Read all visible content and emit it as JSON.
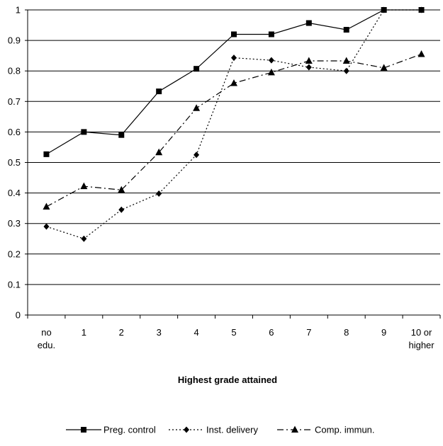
{
  "chart_data": {
    "type": "line",
    "xlabel": "Highest grade attained",
    "ylabel": "",
    "ylim": [
      0,
      1
    ],
    "yticks": [
      "0",
      "0.1",
      "0.2",
      "0.3",
      "0.4",
      "0.5",
      "0.6",
      "0.7",
      "0.8",
      "0.9",
      "1"
    ],
    "categories": [
      [
        "no",
        "edu."
      ],
      [
        "1"
      ],
      [
        "2"
      ],
      [
        "3"
      ],
      [
        "4"
      ],
      [
        "5"
      ],
      [
        "6"
      ],
      [
        "7"
      ],
      [
        "8"
      ],
      [
        "9"
      ],
      [
        "10 or",
        "higher"
      ]
    ],
    "grid": "horizontal",
    "legend_position": "bottom",
    "series": [
      {
        "name": "Preg. control",
        "marker": "square",
        "dash": "solid",
        "color": "#000000",
        "values": [
          0.527,
          0.6,
          0.59,
          0.733,
          0.807,
          0.92,
          0.92,
          0.957,
          0.935,
          1.0,
          1.0
        ]
      },
      {
        "name": "Inst. delivery",
        "marker": "diamond",
        "dash": "dotted",
        "color": "#000000",
        "values": [
          0.29,
          0.25,
          0.345,
          0.398,
          0.525,
          0.843,
          0.835,
          0.812,
          0.8,
          1.0,
          1.0
        ]
      },
      {
        "name": "Comp. immun.",
        "marker": "triangle",
        "dash": "dashdot",
        "color": "#000000",
        "values": [
          0.355,
          0.422,
          0.41,
          0.533,
          0.678,
          0.76,
          0.795,
          0.833,
          0.833,
          0.81,
          0.855
        ]
      }
    ]
  }
}
